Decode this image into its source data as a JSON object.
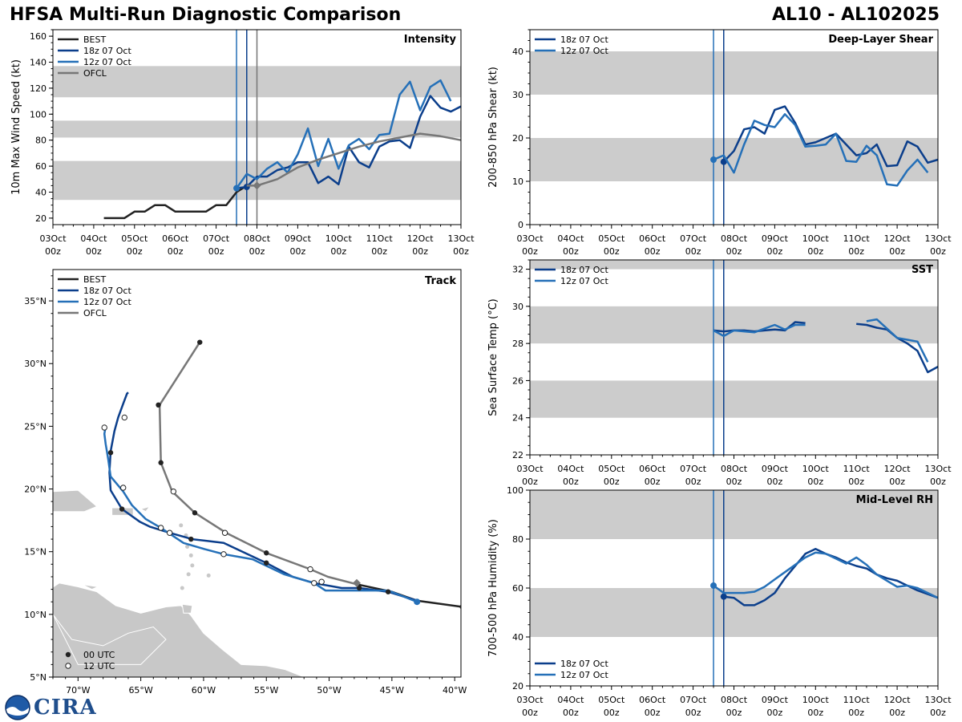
{
  "header": {
    "title": "HFSA Multi-Run Diagnostic Comparison",
    "storm": "AL10 - AL102025"
  },
  "logo": {
    "text": "CIRA",
    "icon": "noaa-globe-icon"
  },
  "colors": {
    "best": "#222222",
    "run18": "#0b3e8b",
    "run12": "#2570b8",
    "ofcl": "#777777",
    "band": "#cccccc",
    "land": "#c8c8c8",
    "border": "#ffffff"
  },
  "time_axis": {
    "ticks": [
      [
        "03Oct",
        "00z"
      ],
      [
        "04Oct",
        "00z"
      ],
      [
        "05Oct",
        "00z"
      ],
      [
        "06Oct",
        "00z"
      ],
      [
        "07Oct",
        "00z"
      ],
      [
        "08Oct",
        "00z"
      ],
      [
        "09Oct",
        "00z"
      ],
      [
        "10Oct",
        "00z"
      ],
      [
        "11Oct",
        "00z"
      ],
      [
        "12Oct",
        "00z"
      ],
      [
        "13Oct",
        "00z"
      ]
    ]
  },
  "chart_data": [
    {
      "id": "intensity",
      "type": "line",
      "title": "Intensity",
      "ylabel": "10m Max Wind Speed (kt)",
      "xlim": [
        0,
        10
      ],
      "ylim": [
        15,
        165
      ],
      "yticks": [
        20,
        40,
        60,
        80,
        100,
        120,
        140,
        160
      ],
      "bands": [
        [
          34,
          64
        ],
        [
          82,
          95
        ],
        [
          113,
          137
        ]
      ],
      "vlines": [
        {
          "x": 4.5,
          "color": "run12"
        },
        {
          "x": 4.75,
          "color": "run18"
        },
        {
          "x": 5.0,
          "color": "ofcl"
        }
      ],
      "legend": [
        "BEST",
        "18z 07 Oct",
        "12z 07 Oct",
        "OFCL"
      ],
      "series": [
        {
          "name": "BEST",
          "color": "best",
          "x": [
            1.25,
            1.5,
            1.75,
            2.0,
            2.25,
            2.5,
            2.75,
            3.0,
            3.25,
            3.5,
            3.75,
            4.0,
            4.25,
            4.5,
            4.75
          ],
          "y": [
            20,
            20,
            20,
            25,
            25,
            30,
            30,
            25,
            25,
            25,
            25,
            30,
            30,
            40,
            45
          ]
        },
        {
          "name": "18z 07 Oct",
          "color": "run18",
          "marker_x": 4.75,
          "x": [
            4.5,
            4.75,
            5.0,
            5.25,
            5.5,
            5.75,
            6.0,
            6.25,
            6.5,
            6.75,
            7.0,
            7.25,
            7.5,
            7.75,
            8.0,
            8.25,
            8.5,
            8.75,
            9.0,
            9.25,
            9.5,
            9.75,
            10.0
          ],
          "y": [
            43,
            44,
            52,
            52,
            57,
            59,
            63,
            63,
            47,
            52,
            46,
            75,
            63,
            59,
            75,
            79,
            80,
            74,
            98,
            114,
            105,
            102,
            106
          ]
        },
        {
          "name": "12z 07 Oct",
          "color": "run12",
          "marker_x": 4.5,
          "x": [
            4.5,
            4.75,
            5.0,
            5.25,
            5.5,
            5.75,
            6.0,
            6.25,
            6.5,
            6.75,
            7.0,
            7.25,
            7.5,
            7.75,
            8.0,
            8.25,
            8.5,
            8.75,
            9.0,
            9.25,
            9.5,
            9.75
          ],
          "y": [
            43,
            54,
            50,
            58,
            63,
            55,
            69,
            89,
            60,
            81,
            58,
            76,
            81,
            73,
            84,
            85,
            115,
            125,
            103,
            121,
            126,
            110
          ]
        },
        {
          "name": "OFCL",
          "color": "ofcl",
          "marker_x": 5.0,
          "x": [
            4.75,
            5.0,
            5.5,
            6.0,
            6.5,
            7.0,
            7.5,
            8.0,
            8.5,
            9.0,
            9.5,
            10.0
          ],
          "y": [
            45,
            45,
            50,
            59,
            65,
            70,
            75,
            79,
            82,
            85,
            83,
            80
          ]
        }
      ]
    },
    {
      "id": "shear",
      "type": "line",
      "title": "Deep-Layer Shear",
      "ylabel": "200-850 hPa Shear (kt)",
      "xlim": [
        0,
        10
      ],
      "ylim": [
        0,
        45
      ],
      "yticks": [
        0,
        10,
        20,
        30,
        40
      ],
      "bands": [
        [
          10,
          20
        ],
        [
          30,
          40
        ]
      ],
      "vlines": [
        {
          "x": 4.5,
          "color": "run12"
        },
        {
          "x": 4.75,
          "color": "run18"
        }
      ],
      "legend": [
        "18z 07 Oct",
        "12z 07 Oct"
      ],
      "series": [
        {
          "name": "18z 07 Oct",
          "color": "run18",
          "marker_x": 4.75,
          "x": [
            4.75,
            5.0,
            5.25,
            5.5,
            5.75,
            6.0,
            6.25,
            6.5,
            6.75,
            7.0,
            7.25,
            7.5,
            7.75,
            8.0,
            8.25,
            8.5,
            8.75,
            9.0,
            9.25,
            9.5,
            9.75,
            10.0
          ],
          "y": [
            14.5,
            17,
            22,
            22.5,
            21,
            26.5,
            27.3,
            23.5,
            18.5,
            19,
            20,
            21,
            18.5,
            16,
            16.5,
            18.5,
            13.5,
            13.7,
            19.2,
            18,
            14.3,
            15
          ]
        },
        {
          "name": "12z 07 Oct",
          "color": "run12",
          "marker_x": 4.5,
          "x": [
            4.5,
            4.75,
            5.0,
            5.25,
            5.5,
            5.75,
            6.0,
            6.25,
            6.5,
            6.75,
            7.0,
            7.25,
            7.5,
            7.75,
            8.0,
            8.25,
            8.5,
            8.75,
            9.0,
            9.25,
            9.5,
            9.75
          ],
          "y": [
            15,
            16,
            12,
            18.5,
            24,
            23,
            22.5,
            25.5,
            23,
            18,
            18.2,
            18.5,
            21,
            14.7,
            14.5,
            18.2,
            16,
            9.3,
            9,
            12.5,
            15,
            12
          ]
        }
      ]
    },
    {
      "id": "sst",
      "type": "line",
      "title": "SST",
      "ylabel": "Sea Surface Temp (°C)",
      "xlim": [
        0,
        10
      ],
      "ylim": [
        22,
        32.5
      ],
      "yticks": [
        22,
        24,
        26,
        28,
        30,
        32
      ],
      "bands": [
        [
          24,
          26
        ],
        [
          28,
          30
        ],
        [
          32,
          32.5
        ]
      ],
      "vlines": [
        {
          "x": 4.5,
          "color": "run12"
        },
        {
          "x": 4.75,
          "color": "run18"
        }
      ],
      "legend": [
        "18z 07 Oct",
        "12z 07 Oct"
      ],
      "series": [
        {
          "name": "18z 07 Oct",
          "color": "run18",
          "x": [
            4.5,
            4.75,
            5.0,
            5.25,
            5.5,
            5.75,
            6.0,
            6.25,
            6.5,
            6.75,
            7.0,
            null,
            8.0,
            8.25,
            8.5,
            8.75,
            9.0,
            9.25,
            9.5,
            9.75,
            10.0
          ],
          "y": [
            28.7,
            28.65,
            28.7,
            28.7,
            28.65,
            28.7,
            28.75,
            28.7,
            29.15,
            29.1,
            null,
            null,
            29.05,
            29.0,
            28.85,
            28.75,
            28.3,
            28.0,
            27.6,
            26.45,
            26.75
          ]
        },
        {
          "name": "12z 07 Oct",
          "color": "run12",
          "x": [
            4.5,
            4.75,
            5.0,
            5.25,
            5.5,
            5.75,
            6.0,
            6.25,
            6.5,
            6.75,
            null,
            8.25,
            8.5,
            8.75,
            9.0,
            9.25,
            9.5,
            9.75
          ],
          "y": [
            28.7,
            28.4,
            28.7,
            28.65,
            28.6,
            28.8,
            29.0,
            28.75,
            29.0,
            29.0,
            null,
            29.2,
            29.3,
            28.8,
            28.3,
            28.2,
            28.1,
            27.0
          ]
        }
      ]
    },
    {
      "id": "rh",
      "type": "line",
      "title": "Mid-Level RH",
      "ylabel": "700-500 hPa Humidity (%)",
      "xlim": [
        0,
        10
      ],
      "ylim": [
        20,
        100
      ],
      "yticks": [
        20,
        40,
        60,
        80,
        100
      ],
      "bands": [
        [
          40,
          60
        ],
        [
          80,
          100
        ]
      ],
      "vlines": [
        {
          "x": 4.5,
          "color": "run12"
        },
        {
          "x": 4.75,
          "color": "run18"
        }
      ],
      "legend": [
        "18z 07 Oct",
        "12z 07 Oct"
      ],
      "series": [
        {
          "name": "18z 07 Oct",
          "color": "run18",
          "marker_x": 4.75,
          "x": [
            4.75,
            5.0,
            5.25,
            5.5,
            5.75,
            6.0,
            6.25,
            6.5,
            6.75,
            7.0,
            7.25,
            7.5,
            7.75,
            8.0,
            8.25,
            8.5,
            8.75,
            9.0,
            9.25,
            9.5,
            9.75,
            10.0
          ],
          "y": [
            56.5,
            56,
            53,
            53,
            55,
            58,
            64,
            69,
            74,
            76,
            74,
            72.5,
            70.5,
            69,
            68,
            65.5,
            64,
            63,
            61,
            59,
            57.5,
            56
          ]
        },
        {
          "name": "12z 07 Oct",
          "color": "run12",
          "marker_x": 4.5,
          "x": [
            4.5,
            4.75,
            5.0,
            5.25,
            5.5,
            5.75,
            6.0,
            6.25,
            6.5,
            6.75,
            7.0,
            7.25,
            7.5,
            7.75,
            8.0,
            8.25,
            8.5,
            8.75,
            9.0,
            9.25,
            9.5,
            9.75,
            10.0
          ],
          "y": [
            61,
            58,
            58,
            58,
            58.5,
            60.5,
            63.5,
            66.5,
            69.5,
            72.5,
            74.5,
            74,
            72,
            70,
            72.5,
            69.5,
            65.5,
            63,
            60.5,
            61,
            60,
            58,
            56
          ]
        }
      ]
    },
    {
      "id": "track",
      "type": "scatter",
      "title": "Track",
      "xlim": [
        -72,
        -39.5
      ],
      "ylim": [
        5,
        37.5
      ],
      "xticks": [
        -70,
        -65,
        -60,
        -55,
        -50,
        -45,
        -40
      ],
      "xticklabels": [
        "70°W",
        "65°W",
        "60°W",
        "55°W",
        "50°W",
        "45°W",
        "40°W"
      ],
      "yticks": [
        5,
        10,
        15,
        20,
        25,
        30,
        35
      ],
      "yticklabels": [
        "5°N",
        "10°N",
        "15°N",
        "20°N",
        "25°N",
        "30°N",
        "35°N"
      ],
      "legend": [
        "BEST",
        "18z 07 Oct",
        "12z 07 Oct",
        "OFCL"
      ],
      "marker_legend": [
        "00 UTC",
        "12 UTC"
      ],
      "series": [
        {
          "name": "BEST",
          "color": "best",
          "lon": [
            -39.4,
            -43.0,
            -45.0,
            -47.8
          ],
          "lat": [
            10.6,
            11.1,
            11.8,
            12.4
          ],
          "dots": [
            [
              -39.4,
              10.6
            ]
          ]
        },
        {
          "name": "18z 07 Oct",
          "color": "run18",
          "lon": [
            -43.0,
            -45.3,
            -47.6,
            -49.0,
            -51.2,
            -52.9,
            -55.0,
            -58.4,
            -60.9,
            -62.7,
            -64.3,
            -65.1,
            -66.5,
            -67.4,
            -67.5,
            -67.4,
            -67.1,
            -66.8,
            -66.4,
            -66.1,
            -66.0
          ],
          "lat": [
            11.1,
            11.8,
            12.1,
            12.1,
            12.5,
            13.0,
            14.1,
            15.7,
            16.0,
            16.5,
            17.0,
            17.4,
            18.4,
            19.9,
            21.3,
            23.0,
            24.6,
            25.7,
            26.8,
            27.6,
            27.7
          ],
          "dots": [
            [
              -45.3,
              11.8
            ],
            [
              -47.6,
              12.1
            ],
            [
              -55.0,
              14.1
            ],
            [
              -61.0,
              16.0
            ],
            [
              -66.5,
              18.4
            ],
            [
              -67.4,
              22.9
            ]
          ],
          "hollow": [
            [
              -51.2,
              12.5
            ],
            [
              -62.7,
              16.5
            ],
            [
              -66.3,
              25.7
            ]
          ]
        },
        {
          "name": "12z 07 Oct",
          "color": "run12",
          "lon": [
            -43.0,
            -45.3,
            -48.3,
            -50.3,
            -51.2,
            -53.6,
            -56.1,
            -58.4,
            -59.9,
            -61.6,
            -63.4,
            -64.6,
            -65.7,
            -66.4,
            -67.4,
            -67.6,
            -67.8,
            -67.9,
            -67.8,
            -67.9
          ],
          "lat": [
            11.0,
            11.9,
            11.9,
            11.9,
            12.5,
            13.2,
            14.4,
            14.8,
            15.2,
            15.7,
            16.9,
            17.6,
            18.7,
            19.8,
            21.0,
            22.4,
            23.6,
            24.4,
            25.0,
            24.9
          ],
          "marker": [
            -43.0,
            11.0
          ],
          "hollow": [
            [
              -50.6,
              12.6
            ],
            [
              -58.4,
              14.8
            ],
            [
              -63.4,
              16.9
            ],
            [
              -66.4,
              20.1
            ],
            [
              -67.9,
              24.9
            ]
          ]
        },
        {
          "name": "OFCL",
          "color": "ofcl",
          "lon": [
            -47.8,
            -50.1,
            -51.5,
            -55.0,
            -58.2,
            -60.7,
            -62.5,
            -63.4,
            -63.5,
            -60.3
          ],
          "lat": [
            12.4,
            13.0,
            13.6,
            14.9,
            16.5,
            18.1,
            19.8,
            22.1,
            26.7,
            31.7
          ],
          "marker": [
            -47.8,
            12.5
          ],
          "dots": [
            [
              -55.0,
              14.9
            ],
            [
              -60.7,
              18.1
            ],
            [
              -63.4,
              22.1
            ],
            [
              -63.6,
              26.7
            ],
            [
              -60.3,
              31.7
            ]
          ],
          "hollow": [
            [
              -51.5,
              13.6
            ],
            [
              -58.3,
              16.5
            ],
            [
              -62.4,
              19.8
            ]
          ]
        }
      ]
    }
  ]
}
